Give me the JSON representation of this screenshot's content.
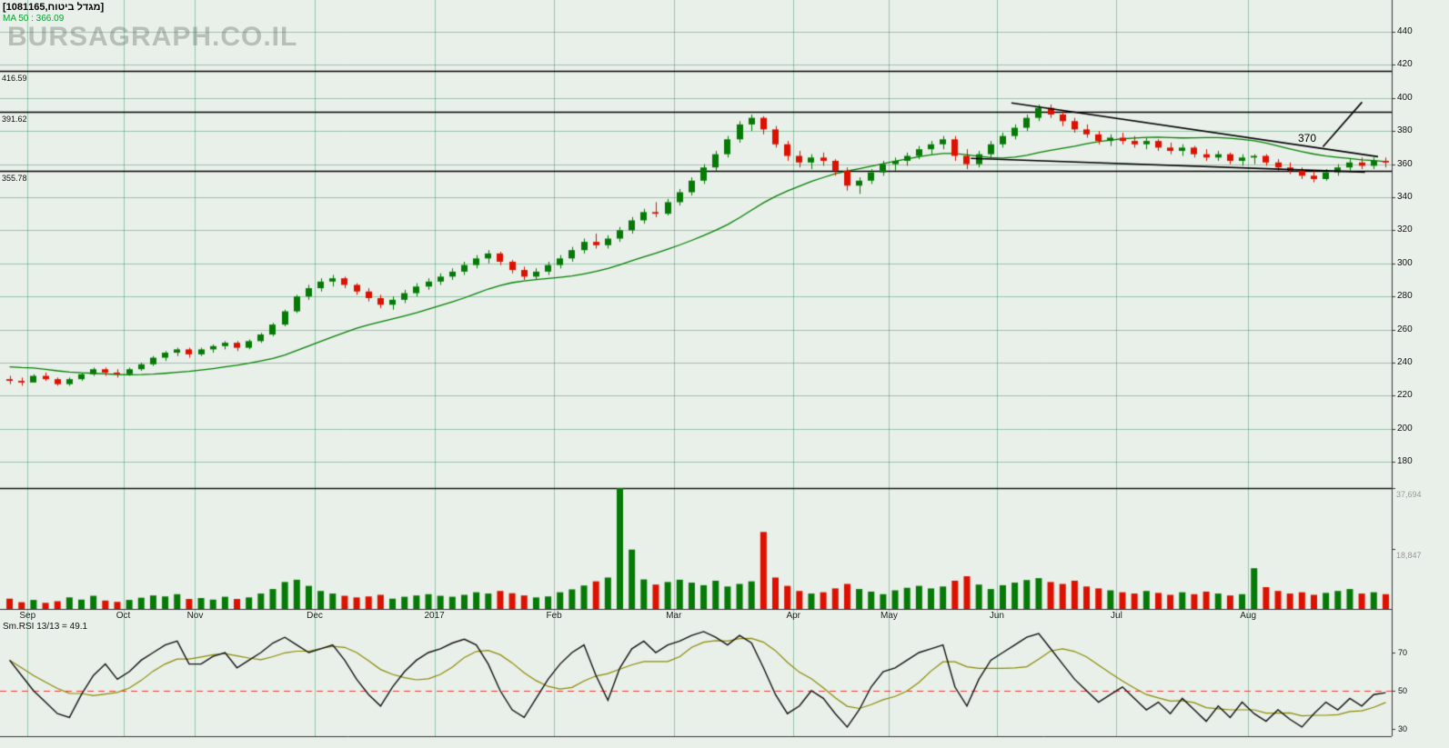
{
  "header": {
    "symbol_label": "[מגדל ביטוח,1081165]",
    "ma_label": "MA 50 : 366.09"
  },
  "watermark": "BURSAGRAPH.CO.IL",
  "colors": {
    "background": "#e9efe9",
    "grid": "#2e8b57",
    "candle_up": "#067a06",
    "candle_down": "#dd1100",
    "ma": "#008000",
    "rsi_line": "#111111",
    "rsi_smooth": "#8b8b00",
    "rsi_mid": "#e04040",
    "trendline": "#000000",
    "frame": "#333333",
    "watermark": "#b7bfb7",
    "volume_label": "#999999",
    "ma_label": "#00a32e"
  },
  "chart_data": [
    {
      "type": "candlestick",
      "symbol": "מגדל ביטוח",
      "security_id": "1081165",
      "price_axis": {
        "min": 180,
        "max": 440,
        "step": 20,
        "ticks": [
          440,
          420,
          400,
          380,
          360,
          340,
          320,
          300,
          280,
          260,
          240,
          220,
          200,
          180
        ]
      },
      "x_labels": [
        {
          "label": "Sep",
          "i": 2
        },
        {
          "label": "Oct",
          "i": 10
        },
        {
          "label": "Nov",
          "i": 16
        },
        {
          "label": "Dec",
          "i": 26
        },
        {
          "label": "2017",
          "i": 36
        },
        {
          "label": "Feb",
          "i": 46
        },
        {
          "label": "Mar",
          "i": 56
        },
        {
          "label": "Apr",
          "i": 66
        },
        {
          "label": "May",
          "i": 74
        },
        {
          "label": "Jun",
          "i": 83
        },
        {
          "label": "Jul",
          "i": 93
        },
        {
          "label": "Aug",
          "i": 104
        }
      ],
      "candles": [
        [
          230,
          232,
          227,
          229
        ],
        [
          229,
          231,
          226,
          228
        ],
        [
          228,
          233,
          228,
          232
        ],
        [
          232,
          234,
          229,
          230
        ],
        [
          230,
          231,
          226,
          227
        ],
        [
          227,
          231,
          226,
          230
        ],
        [
          230,
          234,
          229,
          233
        ],
        [
          233,
          237,
          232,
          236
        ],
        [
          236,
          237,
          232,
          234
        ],
        [
          234,
          236,
          231,
          233
        ],
        [
          233,
          237,
          232,
          236
        ],
        [
          236,
          240,
          235,
          239
        ],
        [
          239,
          244,
          238,
          243
        ],
        [
          243,
          247,
          241,
          246
        ],
        [
          246,
          249,
          244,
          248
        ],
        [
          248,
          249,
          243,
          245
        ],
        [
          245,
          249,
          244,
          248
        ],
        [
          248,
          251,
          246,
          250
        ],
        [
          250,
          253,
          248,
          252
        ],
        [
          252,
          253,
          247,
          249
        ],
        [
          249,
          254,
          248,
          253
        ],
        [
          253,
          258,
          252,
          257
        ],
        [
          257,
          264,
          256,
          263
        ],
        [
          263,
          272,
          262,
          271
        ],
        [
          271,
          281,
          270,
          280
        ],
        [
          280,
          287,
          278,
          285
        ],
        [
          285,
          291,
          283,
          289
        ],
        [
          289,
          293,
          286,
          291
        ],
        [
          291,
          292,
          285,
          287
        ],
        [
          287,
          288,
          281,
          283
        ],
        [
          283,
          285,
          277,
          279
        ],
        [
          279,
          281,
          273,
          275
        ],
        [
          275,
          280,
          272,
          278
        ],
        [
          278,
          284,
          276,
          282
        ],
        [
          282,
          288,
          280,
          286
        ],
        [
          286,
          291,
          284,
          289
        ],
        [
          289,
          294,
          287,
          292
        ],
        [
          292,
          297,
          290,
          295
        ],
        [
          295,
          301,
          293,
          299
        ],
        [
          299,
          305,
          297,
          303
        ],
        [
          303,
          308,
          300,
          306
        ],
        [
          306,
          307,
          299,
          301
        ],
        [
          301,
          302,
          294,
          296
        ],
        [
          296,
          298,
          290,
          292
        ],
        [
          292,
          297,
          290,
          295
        ],
        [
          295,
          301,
          293,
          299
        ],
        [
          299,
          305,
          297,
          303
        ],
        [
          303,
          310,
          301,
          308
        ],
        [
          308,
          315,
          306,
          313
        ],
        [
          313,
          318,
          309,
          311
        ],
        [
          311,
          317,
          309,
          315
        ],
        [
          315,
          322,
          313,
          320
        ],
        [
          320,
          328,
          318,
          326
        ],
        [
          326,
          333,
          324,
          331
        ],
        [
          331,
          337,
          328,
          330
        ],
        [
          330,
          339,
          329,
          337
        ],
        [
          337,
          345,
          335,
          343
        ],
        [
          343,
          352,
          341,
          350
        ],
        [
          350,
          360,
          348,
          358
        ],
        [
          358,
          368,
          356,
          366
        ],
        [
          366,
          377,
          364,
          375
        ],
        [
          375,
          386,
          373,
          384
        ],
        [
          384,
          390,
          380,
          388
        ],
        [
          388,
          389,
          378,
          381
        ],
        [
          381,
          383,
          370,
          372
        ],
        [
          372,
          374,
          362,
          365
        ],
        [
          365,
          368,
          358,
          361
        ],
        [
          361,
          366,
          357,
          364
        ],
        [
          364,
          367,
          359,
          362
        ],
        [
          362,
          363,
          353,
          356
        ],
        [
          356,
          358,
          344,
          347
        ],
        [
          347,
          352,
          342,
          350
        ],
        [
          350,
          357,
          348,
          355
        ],
        [
          355,
          362,
          353,
          360
        ],
        [
          360,
          364,
          356,
          362
        ],
        [
          362,
          367,
          359,
          365
        ],
        [
          365,
          371,
          363,
          369
        ],
        [
          369,
          374,
          366,
          372
        ],
        [
          372,
          377,
          369,
          375
        ],
        [
          375,
          377,
          362,
          365
        ],
        [
          365,
          369,
          357,
          360
        ],
        [
          360,
          368,
          358,
          366
        ],
        [
          366,
          374,
          364,
          372
        ],
        [
          372,
          379,
          370,
          377
        ],
        [
          377,
          384,
          375,
          382
        ],
        [
          382,
          390,
          380,
          388
        ],
        [
          388,
          396,
          386,
          394
        ],
        [
          394,
          396,
          388,
          390
        ],
        [
          390,
          392,
          383,
          386
        ],
        [
          386,
          388,
          379,
          381
        ],
        [
          381,
          384,
          376,
          378
        ],
        [
          378,
          380,
          372,
          374
        ],
        [
          374,
          378,
          371,
          376
        ],
        [
          376,
          379,
          372,
          374
        ],
        [
          374,
          377,
          370,
          372
        ],
        [
          372,
          376,
          369,
          374
        ],
        [
          374,
          375,
          368,
          370
        ],
        [
          370,
          373,
          366,
          368
        ],
        [
          368,
          372,
          365,
          370
        ],
        [
          370,
          371,
          364,
          366
        ],
        [
          366,
          369,
          362,
          364
        ],
        [
          364,
          368,
          362,
          366
        ],
        [
          366,
          367,
          360,
          362
        ],
        [
          362,
          366,
          359,
          364
        ],
        [
          364,
          366,
          360,
          365
        ],
        [
          365,
          366,
          359,
          361
        ],
        [
          361,
          363,
          356,
          358
        ],
        [
          358,
          361,
          354,
          356
        ],
        [
          356,
          358,
          351,
          353
        ],
        [
          353,
          356,
          349,
          351
        ],
        [
          351,
          357,
          350,
          355
        ],
        [
          355,
          360,
          353,
          358
        ],
        [
          358,
          363,
          356,
          361
        ],
        [
          361,
          364,
          357,
          359
        ],
        [
          359,
          364,
          357,
          362
        ],
        [
          362,
          364,
          358,
          361
        ]
      ],
      "ma50": {
        "window": 20,
        "seed": [
          246,
          245,
          244,
          243,
          242,
          241,
          240,
          239,
          238,
          237,
          236,
          235,
          234,
          233,
          232,
          231,
          230
        ],
        "last_value": 366.09
      },
      "hlines": [
        {
          "value": 416.59,
          "label": "416.59"
        },
        {
          "value": 391.62,
          "label": "391.62"
        },
        {
          "value": 355.78,
          "label": "355.78"
        }
      ],
      "trendlines": [
        {
          "x1f": 0.698,
          "p1": 397.0,
          "x2f": 0.951,
          "p2": 364.5
        },
        {
          "x1f": 0.67,
          "p1": 363.5,
          "x2f": 0.942,
          "p2": 355.2
        },
        {
          "x1f": 0.94,
          "p1": 397.5,
          "x2f": 0.913,
          "p2": 370.5
        }
      ],
      "annotation": {
        "text": "370",
        "price": 371
      }
    },
    {
      "type": "bar",
      "name": "volume",
      "max": 37694,
      "axis_labels": [
        {
          "text": "37,694",
          "value": 37694
        },
        {
          "text": "18,847",
          "value": 18847
        }
      ],
      "values": [
        3200,
        2100,
        2800,
        1900,
        2400,
        3600,
        2900,
        4100,
        2600,
        2200,
        2800,
        3500,
        4200,
        3900,
        4600,
        3100,
        3400,
        2900,
        3800,
        3100,
        3600,
        4800,
        6200,
        8400,
        9100,
        7200,
        5600,
        4800,
        4100,
        3600,
        3900,
        4400,
        3200,
        3800,
        4200,
        4600,
        4100,
        3800,
        4400,
        5200,
        4800,
        5600,
        4900,
        4200,
        3600,
        3900,
        5200,
        6100,
        7300,
        8600,
        9800,
        37694,
        18500,
        9200,
        7600,
        8400,
        9100,
        8200,
        7400,
        8800,
        7000,
        7800,
        8600,
        24000,
        9800,
        7200,
        5600,
        4800,
        5200,
        6400,
        7800,
        6200,
        5400,
        4600,
        5800,
        6600,
        7200,
        6400,
        7000,
        8800,
        10200,
        7600,
        6200,
        7400,
        8200,
        9000,
        9600,
        8400,
        7800,
        8800,
        7000,
        6400,
        5800,
        5200,
        4800,
        5600,
        5000,
        4400,
        5200,
        4600,
        5400,
        4800,
        4200,
        4600,
        12700,
        6800,
        5600,
        4800,
        5200,
        4400,
        5000,
        5600,
        6200,
        4800,
        5200,
        4600
      ]
    },
    {
      "type": "line",
      "name": "rsi",
      "label": "Sm.RSI 13/13 = 49.1",
      "period": "13/13",
      "last_value": 49.1,
      "axis_ticks": [
        70,
        50,
        30
      ],
      "midline": 50,
      "smooth_window": 7,
      "values": [
        66,
        58,
        50,
        44,
        38,
        36,
        48,
        58,
        64,
        56,
        60,
        66,
        70,
        74,
        76,
        64,
        64,
        68,
        70,
        62,
        66,
        70,
        75,
        78,
        74,
        70,
        72,
        74,
        66,
        56,
        48,
        42,
        52,
        60,
        66,
        70,
        72,
        75,
        77,
        74,
        64,
        50,
        40,
        36,
        46,
        56,
        64,
        70,
        74,
        58,
        45,
        62,
        72,
        76,
        70,
        74,
        76,
        79,
        81,
        78,
        74,
        79,
        75,
        62,
        48,
        38,
        42,
        50,
        46,
        38,
        31,
        40,
        52,
        60,
        62,
        66,
        70,
        72,
        74,
        52,
        42,
        56,
        66,
        70,
        74,
        78,
        80,
        72,
        64,
        56,
        50,
        44,
        48,
        52,
        46,
        40,
        44,
        38,
        46,
        40,
        34,
        42,
        36,
        44,
        38,
        34,
        40,
        35,
        31,
        38,
        44,
        40,
        46,
        42,
        48,
        49
      ]
    }
  ]
}
